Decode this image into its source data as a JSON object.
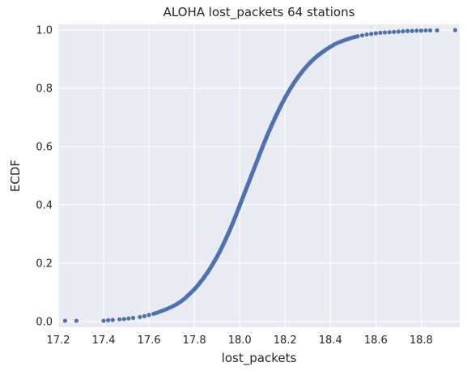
{
  "chart_data": {
    "type": "scatter",
    "title": "ALOHA lost_packets 64 stations",
    "xlabel": "lost_packets",
    "ylabel": "ECDF",
    "xlim": [
      17.2,
      18.97
    ],
    "ylim": [
      -0.02,
      1.02
    ],
    "xticks": [
      17.2,
      17.4,
      17.6,
      17.8,
      18.0,
      18.2,
      18.4,
      18.6,
      18.8
    ],
    "xtick_labels": [
      "17.2",
      "17.4",
      "17.6",
      "17.8",
      "18.0",
      "18.2",
      "18.4",
      "18.6",
      "18.8"
    ],
    "yticks": [
      0.0,
      0.2,
      0.4,
      0.6,
      0.8,
      1.0
    ],
    "ytick_labels": [
      "0.0",
      "0.2",
      "0.4",
      "0.6",
      "0.8",
      "1.0"
    ],
    "grid": true,
    "background_color": "#eaeaf2",
    "grid_color": "#ffffff",
    "series": [
      {
        "color": "#4c72b0",
        "x": [
          17.23,
          17.28,
          17.4,
          17.42,
          17.44,
          17.47,
          17.49,
          17.51,
          17.53,
          17.56,
          17.58,
          17.6,
          17.62,
          17.64,
          17.66,
          17.68,
          17.7,
          17.72,
          17.74,
          17.76,
          17.78,
          17.8,
          17.82,
          17.84,
          17.86,
          17.88,
          17.9,
          17.92,
          17.94,
          17.96,
          17.98,
          18.0,
          18.02,
          18.04,
          18.06,
          18.08,
          18.1,
          18.12,
          18.14,
          18.16,
          18.18,
          18.2,
          18.22,
          18.24,
          18.26,
          18.28,
          18.3,
          18.32,
          18.34,
          18.36,
          18.38,
          18.4,
          18.42,
          18.44,
          18.46,
          18.48,
          18.5,
          18.52,
          18.54,
          18.56,
          18.58,
          18.6,
          18.62,
          18.64,
          18.66,
          18.68,
          18.7,
          18.72,
          18.74,
          18.76,
          18.78,
          18.8,
          18.82,
          18.84,
          18.87,
          18.95
        ],
        "y": [
          0.002,
          0.002,
          0.002,
          0.004,
          0.005,
          0.007,
          0.008,
          0.01,
          0.012,
          0.015,
          0.018,
          0.022,
          0.026,
          0.031,
          0.037,
          0.043,
          0.05,
          0.058,
          0.068,
          0.08,
          0.095,
          0.11,
          0.128,
          0.148,
          0.17,
          0.195,
          0.222,
          0.252,
          0.285,
          0.32,
          0.358,
          0.398,
          0.438,
          0.478,
          0.518,
          0.558,
          0.598,
          0.636,
          0.672,
          0.706,
          0.738,
          0.768,
          0.795,
          0.82,
          0.842,
          0.862,
          0.88,
          0.896,
          0.91,
          0.922,
          0.933,
          0.943,
          0.952,
          0.959,
          0.965,
          0.97,
          0.975,
          0.979,
          0.982,
          0.985,
          0.987,
          0.989,
          0.991,
          0.992,
          0.993,
          0.994,
          0.995,
          0.996,
          0.997,
          0.997,
          0.998,
          0.998,
          0.999,
          0.999,
          0.999,
          1.0
        ]
      }
    ]
  }
}
